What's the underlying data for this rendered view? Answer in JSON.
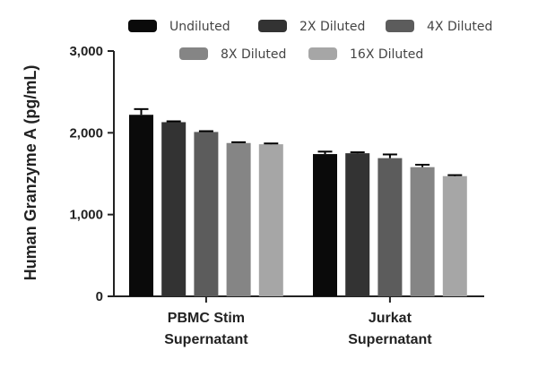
{
  "chart_data": {
    "type": "bar",
    "ylabel": "Human Granzyme A (pg/mL)",
    "ylim": [
      0,
      3000
    ],
    "yticks": [
      0,
      1000,
      2000,
      3000
    ],
    "ytick_labels": [
      "0",
      "1,000",
      "2,000",
      "3,000"
    ],
    "categories": [
      {
        "line1": "PBMC Stim",
        "line2": "Supernatant"
      },
      {
        "line1": "Jurkat",
        "line2": "Supernatant"
      }
    ],
    "series": [
      {
        "name": "Undiluted",
        "color": "#0a0a0a",
        "values": [
          2220,
          1740
        ],
        "errors": [
          70,
          30
        ]
      },
      {
        "name": "2X Diluted",
        "color": "#333333",
        "values": [
          2130,
          1750
        ],
        "errors": [
          10,
          12
        ]
      },
      {
        "name": "4X Diluted",
        "color": "#5c5c5c",
        "values": [
          2010,
          1690
        ],
        "errors": [
          10,
          45
        ]
      },
      {
        "name": "8X Diluted",
        "color": "#858585",
        "values": [
          1875,
          1580
        ],
        "errors": [
          10,
          30
        ]
      },
      {
        "name": "16X Diluted",
        "color": "#a6a6a6",
        "values": [
          1860,
          1470
        ],
        "errors": [
          10,
          12
        ]
      }
    ],
    "legend_position": "top-right",
    "grid": false
  }
}
